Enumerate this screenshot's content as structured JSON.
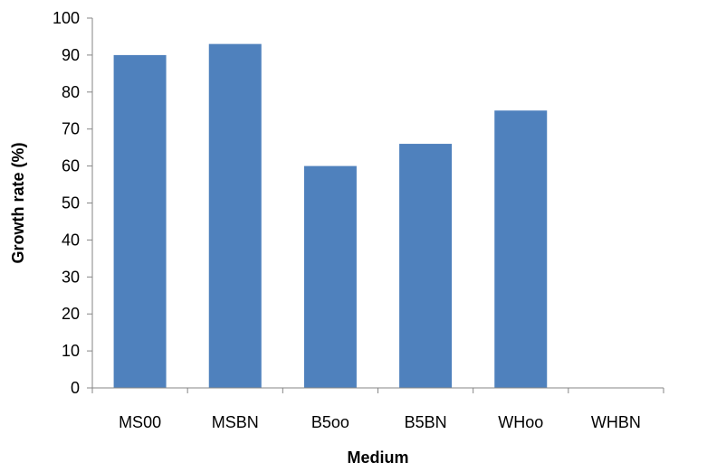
{
  "chart_data": {
    "type": "bar",
    "categories": [
      "MS00",
      "MSBN",
      "B5oo",
      "B5BN",
      "WHoo",
      "WHBN"
    ],
    "values": [
      90,
      93,
      60,
      66,
      75,
      0
    ],
    "title": "",
    "xlabel": "Medium",
    "ylabel": "Growth rate (%)",
    "ylim": [
      0,
      100
    ],
    "yticks": [
      0,
      10,
      20,
      30,
      40,
      50,
      60,
      70,
      80,
      90,
      100
    ],
    "grid": false,
    "legend": "none",
    "bar_color": "#4F81BD"
  }
}
